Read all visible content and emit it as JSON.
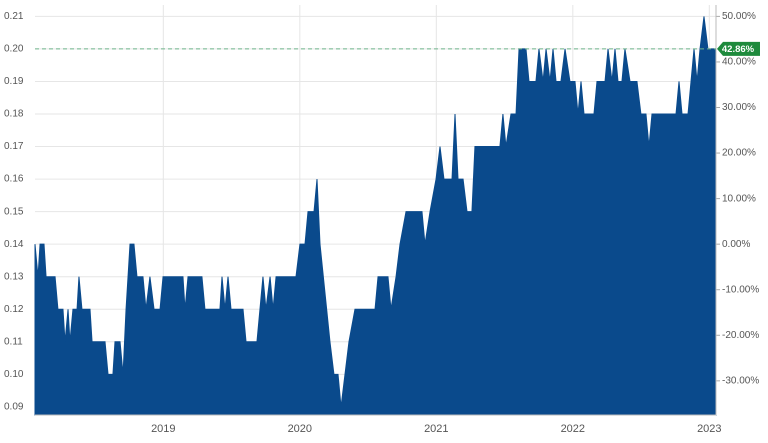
{
  "chart_data": {
    "type": "area",
    "color": "#0a4a8c",
    "x": [
      2018.06,
      2018.082,
      2018.097,
      2018.126,
      2018.141,
      2018.207,
      2018.228,
      2018.265,
      2018.28,
      2018.302,
      2018.316,
      2018.338,
      2018.368,
      2018.382,
      2018.404,
      2018.463,
      2018.478,
      2018.573,
      2018.595,
      2018.631,
      2018.646,
      2018.683,
      2018.705,
      2018.727,
      2018.756,
      2018.785,
      2018.807,
      2018.851,
      2018.873,
      2018.902,
      2018.932,
      2018.976,
      2018.998,
      2019.144,
      2019.159,
      2019.181,
      2019.283,
      2019.305,
      2019.415,
      2019.43,
      2019.452,
      2019.474,
      2019.496,
      2019.584,
      2019.606,
      2019.686,
      2019.708,
      2019.73,
      2019.752,
      2019.782,
      2019.804,
      2019.826,
      2019.972,
      2020.001,
      2020.038,
      2020.06,
      2020.104,
      2020.126,
      2020.148,
      2020.221,
      2020.25,
      2020.28,
      2020.302,
      2020.331,
      2020.36,
      2020.404,
      2020.551,
      2020.573,
      2020.646,
      2020.668,
      2020.705,
      2020.734,
      2020.778,
      2020.895,
      2020.917,
      2020.954,
      2020.998,
      2021.027,
      2021.056,
      2021.115,
      2021.137,
      2021.159,
      2021.196,
      2021.225,
      2021.261,
      2021.283,
      2021.466,
      2021.488,
      2021.51,
      2021.547,
      2021.584,
      2021.606,
      2021.657,
      2021.679,
      2021.73,
      2021.752,
      2021.782,
      2021.804,
      2021.833,
      2021.855,
      2021.877,
      2021.913,
      2021.943,
      2021.979,
      2022.016,
      2022.038,
      2022.06,
      2022.082,
      2022.155,
      2022.177,
      2022.236,
      2022.258,
      2022.287,
      2022.309,
      2022.331,
      2022.36,
      2022.382,
      2022.419,
      2022.47,
      2022.499,
      2022.536,
      2022.558,
      2022.58,
      2022.756,
      2022.778,
      2022.8,
      2022.844,
      2022.866,
      2022.888,
      2022.91,
      2022.932,
      2022.961,
      2022.99,
      2023.049
    ],
    "values": [
      0.14,
      0.13,
      0.14,
      0.14,
      0.13,
      0.13,
      0.12,
      0.12,
      0.11,
      0.12,
      0.11,
      0.12,
      0.12,
      0.13,
      0.12,
      0.12,
      0.11,
      0.11,
      0.1,
      0.1,
      0.11,
      0.11,
      0.1,
      0.12,
      0.14,
      0.14,
      0.13,
      0.13,
      0.12,
      0.13,
      0.12,
      0.12,
      0.13,
      0.13,
      0.12,
      0.13,
      0.13,
      0.12,
      0.12,
      0.13,
      0.12,
      0.13,
      0.12,
      0.12,
      0.11,
      0.11,
      0.12,
      0.13,
      0.12,
      0.13,
      0.12,
      0.13,
      0.13,
      0.14,
      0.14,
      0.15,
      0.15,
      0.16,
      0.14,
      0.11,
      0.1,
      0.1,
      0.09,
      0.1,
      0.11,
      0.12,
      0.12,
      0.13,
      0.13,
      0.12,
      0.13,
      0.14,
      0.15,
      0.15,
      0.14,
      0.15,
      0.16,
      0.17,
      0.16,
      0.16,
      0.18,
      0.16,
      0.16,
      0.15,
      0.15,
      0.17,
      0.17,
      0.18,
      0.17,
      0.18,
      0.18,
      0.2,
      0.2,
      0.19,
      0.19,
      0.2,
      0.19,
      0.2,
      0.19,
      0.2,
      0.19,
      0.19,
      0.2,
      0.19,
      0.19,
      0.18,
      0.19,
      0.18,
      0.18,
      0.19,
      0.19,
      0.2,
      0.19,
      0.2,
      0.19,
      0.19,
      0.2,
      0.19,
      0.19,
      0.18,
      0.18,
      0.17,
      0.18,
      0.18,
      0.19,
      0.18,
      0.18,
      0.19,
      0.2,
      0.19,
      0.2,
      0.21,
      0.2,
      0.2
    ],
    "xlim": [
      2018.06,
      2023.049
    ],
    "xticks": [
      2019,
      2020,
      2021,
      2022,
      2023
    ],
    "ylim": [
      0.0875,
      0.2135
    ],
    "yticks": [
      0.09,
      {
        "value": 0.1,
        "label": "0.10"
      },
      0.11,
      0.12,
      0.13,
      0.14,
      0.15,
      0.16,
      0.17,
      0.18,
      0.19,
      {
        "value": 0.2,
        "label": "0.20"
      },
      0.21
    ],
    "y2lim": [
      -37.5,
      52.5
    ],
    "y2ticks": [
      {
        "value": -30,
        "label": "-30.00%"
      },
      {
        "value": -20,
        "label": "-20.00%"
      },
      {
        "value": -10,
        "label": "-10.00%"
      },
      {
        "value": 0,
        "label": "0.00%"
      },
      {
        "value": 10,
        "label": "10.00%"
      },
      {
        "value": 20,
        "label": "20.00%"
      },
      {
        "value": 30,
        "label": "30.00%"
      },
      {
        "value": 40,
        "label": "40.00%"
      },
      {
        "value": 50,
        "label": "50.00%"
      }
    ],
    "reference_line": {
      "value": 0.2,
      "label": "42.86%",
      "color": "#1e8a3c"
    },
    "grid": true
  }
}
